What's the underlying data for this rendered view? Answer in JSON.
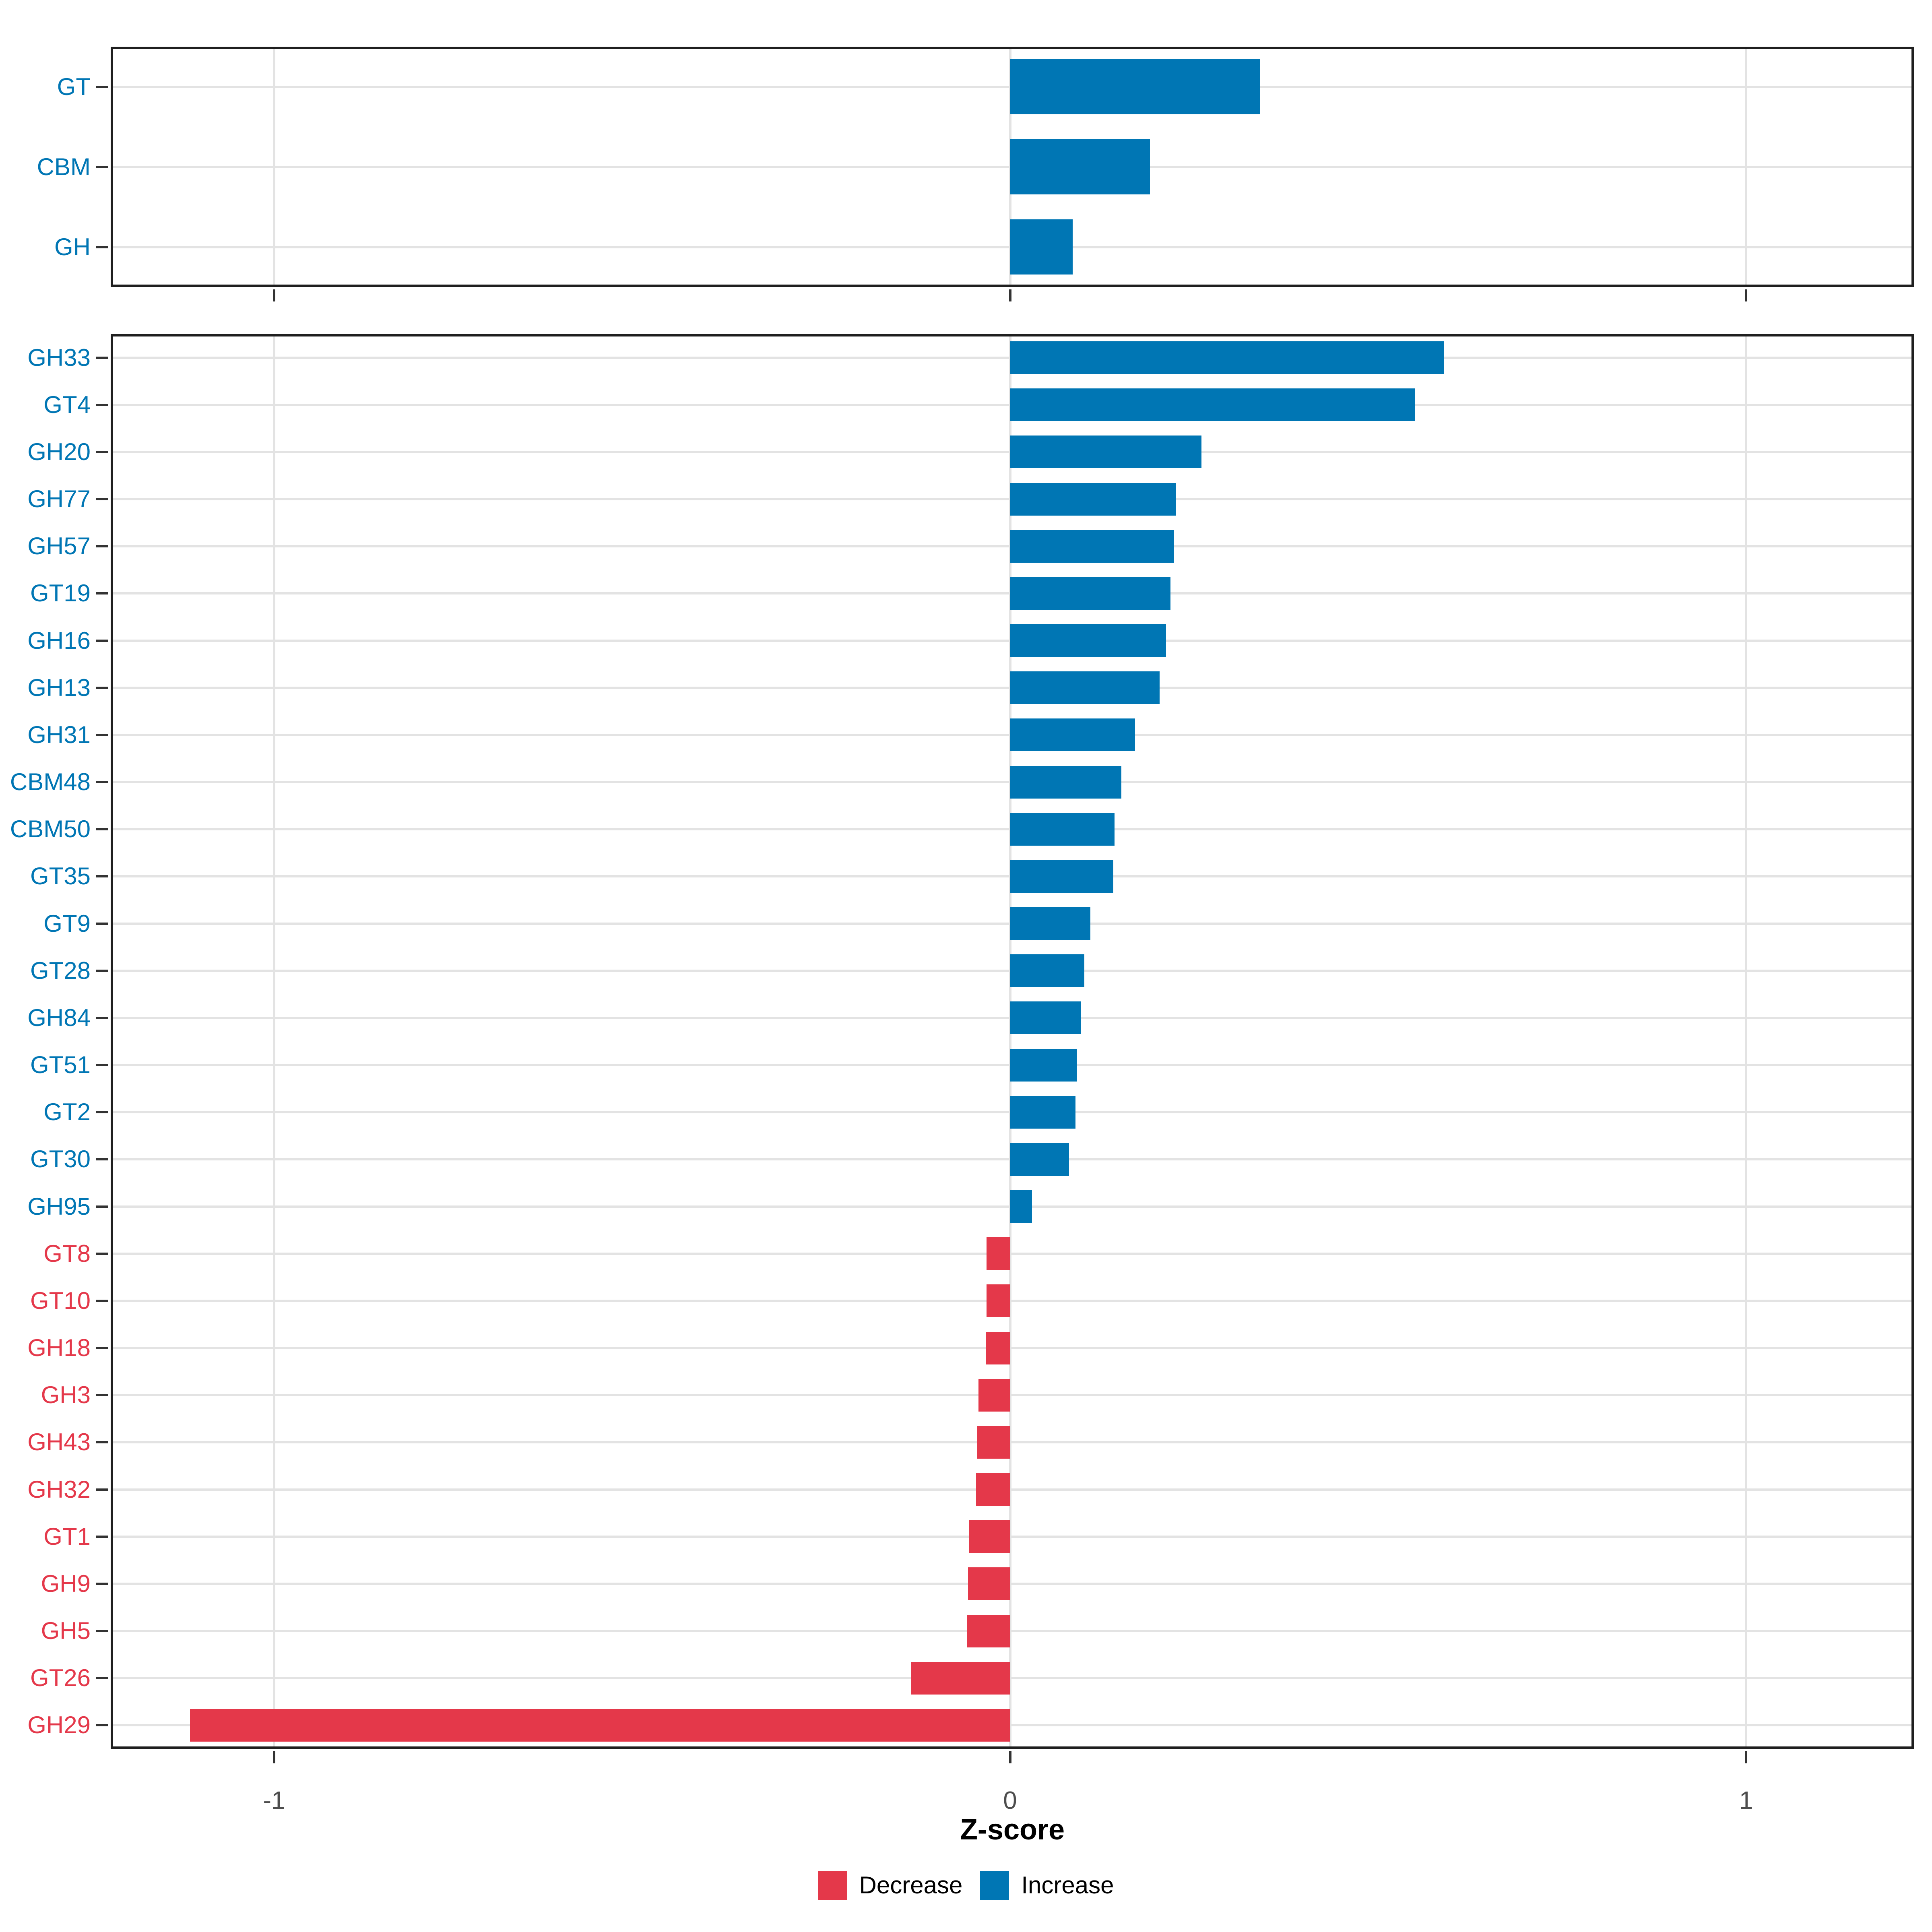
{
  "colors": {
    "increase": "#0076B4",
    "decrease": "#E4384A",
    "gridline": "#E3E3E3",
    "panel_border": "#1F1F1F",
    "tick_mark": "#333333",
    "axis_tick_text": "#4D4D4D",
    "axis_title_text": "#000000",
    "background": "#FFFFFF"
  },
  "chart_data": {
    "type": "bar",
    "orientation": "horizontal",
    "xlabel": "Z-score",
    "xlim": [
      -1.222,
      1.228
    ],
    "x_ticks": {
      "values": [
        -1,
        0,
        1
      ],
      "labels": [
        "-1",
        "0",
        "1"
      ]
    },
    "grid": {
      "vertical_at": [
        -1,
        0,
        1
      ],
      "horizontal": "every-category-center"
    },
    "bar_color_rule": "sign: positive=increase(blue), negative=decrease(red); y labels colored to match",
    "panels": [
      {
        "id": "summary",
        "categories": [
          "GT",
          "CBM",
          "GH"
        ],
        "values": [
          0.34,
          0.19,
          0.085
        ]
      },
      {
        "id": "families",
        "categories": [
          "GH33",
          "GT4",
          "GH20",
          "GH77",
          "GH57",
          "GT19",
          "GH16",
          "GH13",
          "GH31",
          "CBM48",
          "CBM50",
          "GT35",
          "GT9",
          "GT28",
          "GH84",
          "GT51",
          "GT2",
          "GT30",
          "GH95",
          "GT8",
          "GT10",
          "GH18",
          "GH3",
          "GH43",
          "GH32",
          "GT1",
          "GH9",
          "GH5",
          "GT26",
          "GH29"
        ],
        "values": [
          0.59,
          0.55,
          0.26,
          0.225,
          0.223,
          0.218,
          0.212,
          0.203,
          0.17,
          0.151,
          0.142,
          0.14,
          0.109,
          0.101,
          0.096,
          0.091,
          0.089,
          0.08,
          0.03,
          -0.032,
          -0.032,
          -0.033,
          -0.043,
          -0.045,
          -0.046,
          -0.056,
          -0.057,
          -0.058,
          -0.135,
          -1.114
        ]
      }
    ],
    "legend": {
      "position": "bottom",
      "items": [
        {
          "label": "Decrease",
          "color": "#E4384A"
        },
        {
          "label": "Increase",
          "color": "#0076B4"
        }
      ]
    }
  }
}
